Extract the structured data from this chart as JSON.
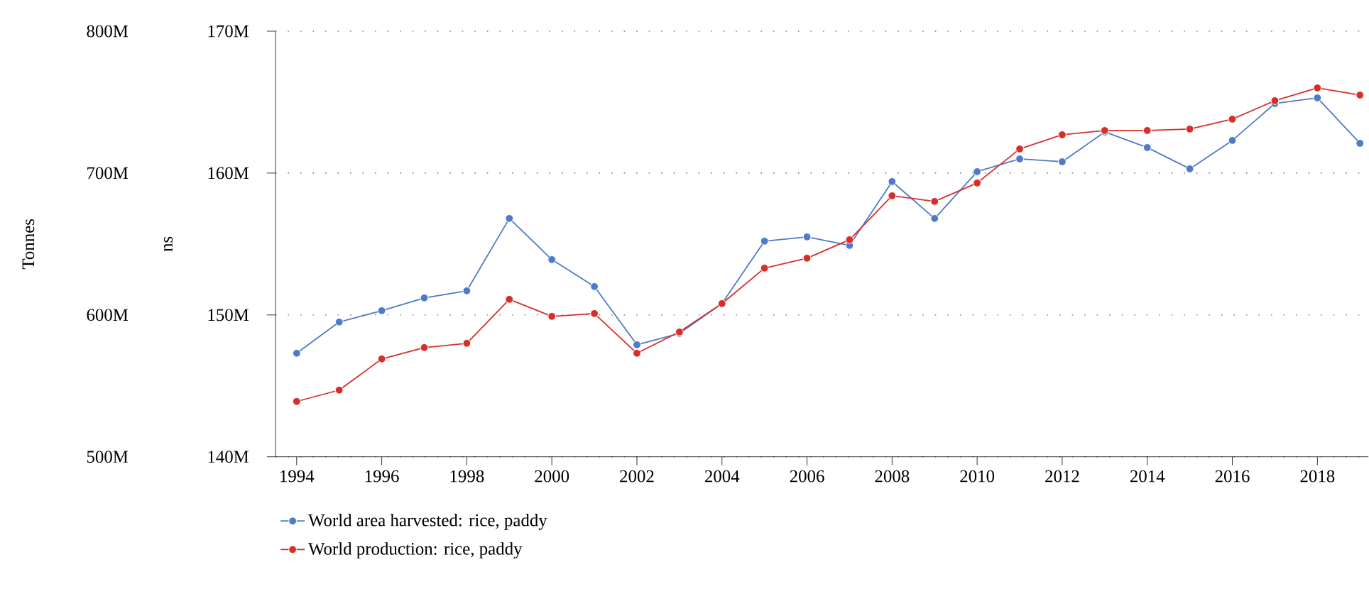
{
  "chart_data": {
    "type": "line",
    "ylabel": "Tonnes",
    "y2label": "ns",
    "x": [
      1994,
      1995,
      1996,
      1997,
      1998,
      1999,
      2000,
      2001,
      2002,
      2003,
      2004,
      2005,
      2006,
      2007,
      2008,
      2009,
      2010,
      2011,
      2012,
      2013,
      2014,
      2015,
      2016,
      2017,
      2018,
      2019
    ],
    "series": [
      {
        "name": "World area harvested: rice, paddy",
        "color": "#4e7ac7",
        "axis": "y2",
        "values": [
          147300000,
          149500000,
          150300000,
          151200000,
          151700000,
          156800000,
          153900000,
          152000000,
          147900000,
          148700000,
          150800000,
          155200000,
          155500000,
          154900000,
          159400000,
          156800000,
          160100000,
          161000000,
          160800000,
          162900000,
          161800000,
          160300000,
          162300000,
          164900000,
          165300000,
          162100000
        ]
      },
      {
        "name": "World production: rice, paddy",
        "color": "#d62f2a",
        "values": [
          539000000,
          547000000,
          569000000,
          577000000,
          580000000,
          611000000,
          599000000,
          601000000,
          573000000,
          588000000,
          608000000,
          633000000,
          640000000,
          653000000,
          684000000,
          680000000,
          693000000,
          717000000,
          727000000,
          730000000,
          730000000,
          731000000,
          738000000,
          751000000,
          760000000,
          755000000
        ]
      }
    ],
    "xlim": [
      1993.5,
      2019.2
    ],
    "xticks": [
      1994,
      1996,
      1998,
      2000,
      2002,
      2004,
      2006,
      2008,
      2010,
      2012,
      2014,
      2016,
      2018
    ],
    "ylim": [
      500000000,
      800000000
    ],
    "yticks": [
      {
        "value": 500000000,
        "label": "500M"
      },
      {
        "value": 600000000,
        "label": "600M"
      },
      {
        "value": 700000000,
        "label": "700M"
      },
      {
        "value": 800000000,
        "label": "800M"
      }
    ],
    "y2lim": [
      140000000,
      170000000
    ],
    "y2ticks": [
      {
        "value": 140000000,
        "label": "140M"
      },
      {
        "value": 150000000,
        "label": "150M"
      },
      {
        "value": 160000000,
        "label": "160M"
      },
      {
        "value": 170000000,
        "label": "170M"
      }
    ],
    "grid": "y",
    "legend": "bottom",
    "marker": "circle",
    "line_style": "solid"
  }
}
